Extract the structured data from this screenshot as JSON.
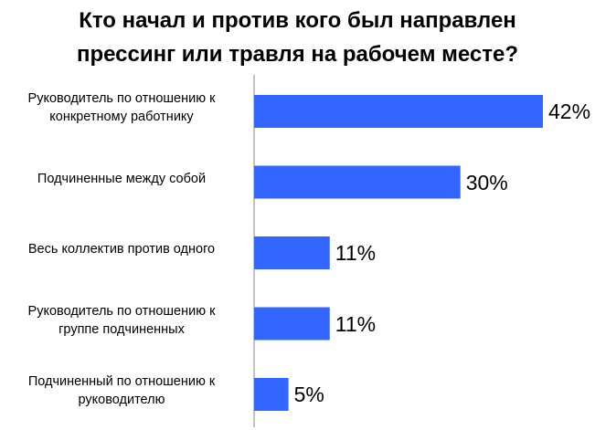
{
  "chart_data": {
    "type": "bar",
    "orientation": "horizontal",
    "title_lines": [
      "Кто начал и против кого был направлен",
      "прессинг или травля на рабочем месте?"
    ],
    "categories": [
      "Руководитель  по отношению к\nконкретному работнику",
      "Подчиненные между собой",
      "Весь коллектив против одного",
      "Руководитель по отношению к\nгруппе подчиненных",
      "Подчиненный по отношению  к\nруководителю"
    ],
    "values": [
      42,
      30,
      11,
      11,
      5
    ],
    "data_labels": [
      "42%",
      "30%",
      "11%",
      "11%",
      "5%"
    ],
    "value_unit": "%",
    "xlim": [
      0,
      42
    ],
    "grid": false,
    "legend": "none",
    "colors": {
      "bar": "#3366ff",
      "axis": "#868686"
    }
  }
}
